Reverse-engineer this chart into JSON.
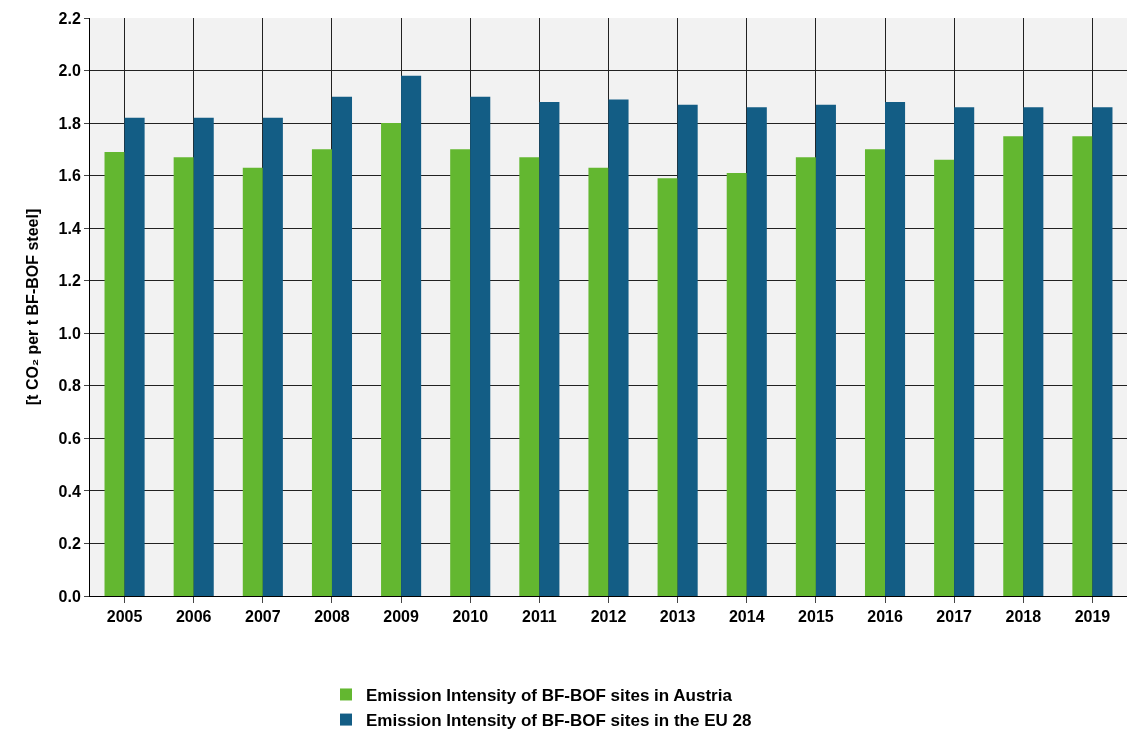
{
  "chart_data": {
    "type": "bar",
    "ylabel": "[t CO₂ per t BF-BOF steel]",
    "categories": [
      "2005",
      "2006",
      "2007",
      "2008",
      "2009",
      "2010",
      "2011",
      "2012",
      "2013",
      "2014",
      "2015",
      "2016",
      "2017",
      "2018",
      "2019"
    ],
    "series": [
      {
        "name": "Emission Intensity of BF-BOF sites in Austria",
        "color": "#63b730",
        "values": [
          1.69,
          1.67,
          1.63,
          1.7,
          1.8,
          1.7,
          1.67,
          1.63,
          1.59,
          1.61,
          1.67,
          1.7,
          1.66,
          1.75,
          1.75
        ]
      },
      {
        "name": "Emission Intensity of BF-BOF sites in the EU 28",
        "color": "#135d85",
        "values": [
          1.82,
          1.82,
          1.82,
          1.9,
          1.98,
          1.9,
          1.88,
          1.89,
          1.87,
          1.86,
          1.87,
          1.88,
          1.86,
          1.86,
          1.86
        ]
      }
    ],
    "ylim": [
      0,
      2.2
    ],
    "yticks": [
      {
        "value": 0,
        "label": "0.0"
      },
      {
        "value": 0.2,
        "label": "0.2"
      },
      {
        "value": 0.4,
        "label": "0.4"
      },
      {
        "value": 0.6,
        "label": "0.6"
      },
      {
        "value": 0.8,
        "label": "0.8"
      },
      {
        "value": 1.0,
        "label": "1.0"
      },
      {
        "value": 1.2,
        "label": "1.2"
      },
      {
        "value": 1.4,
        "label": "1.4"
      },
      {
        "value": 1.6,
        "label": "1.6"
      },
      {
        "value": 1.8,
        "label": "1.8"
      },
      {
        "value": 2.0,
        "label": "2.0"
      },
      {
        "value": 2.2,
        "label": "2.2"
      }
    ],
    "grid": true,
    "legend": "bottom"
  }
}
